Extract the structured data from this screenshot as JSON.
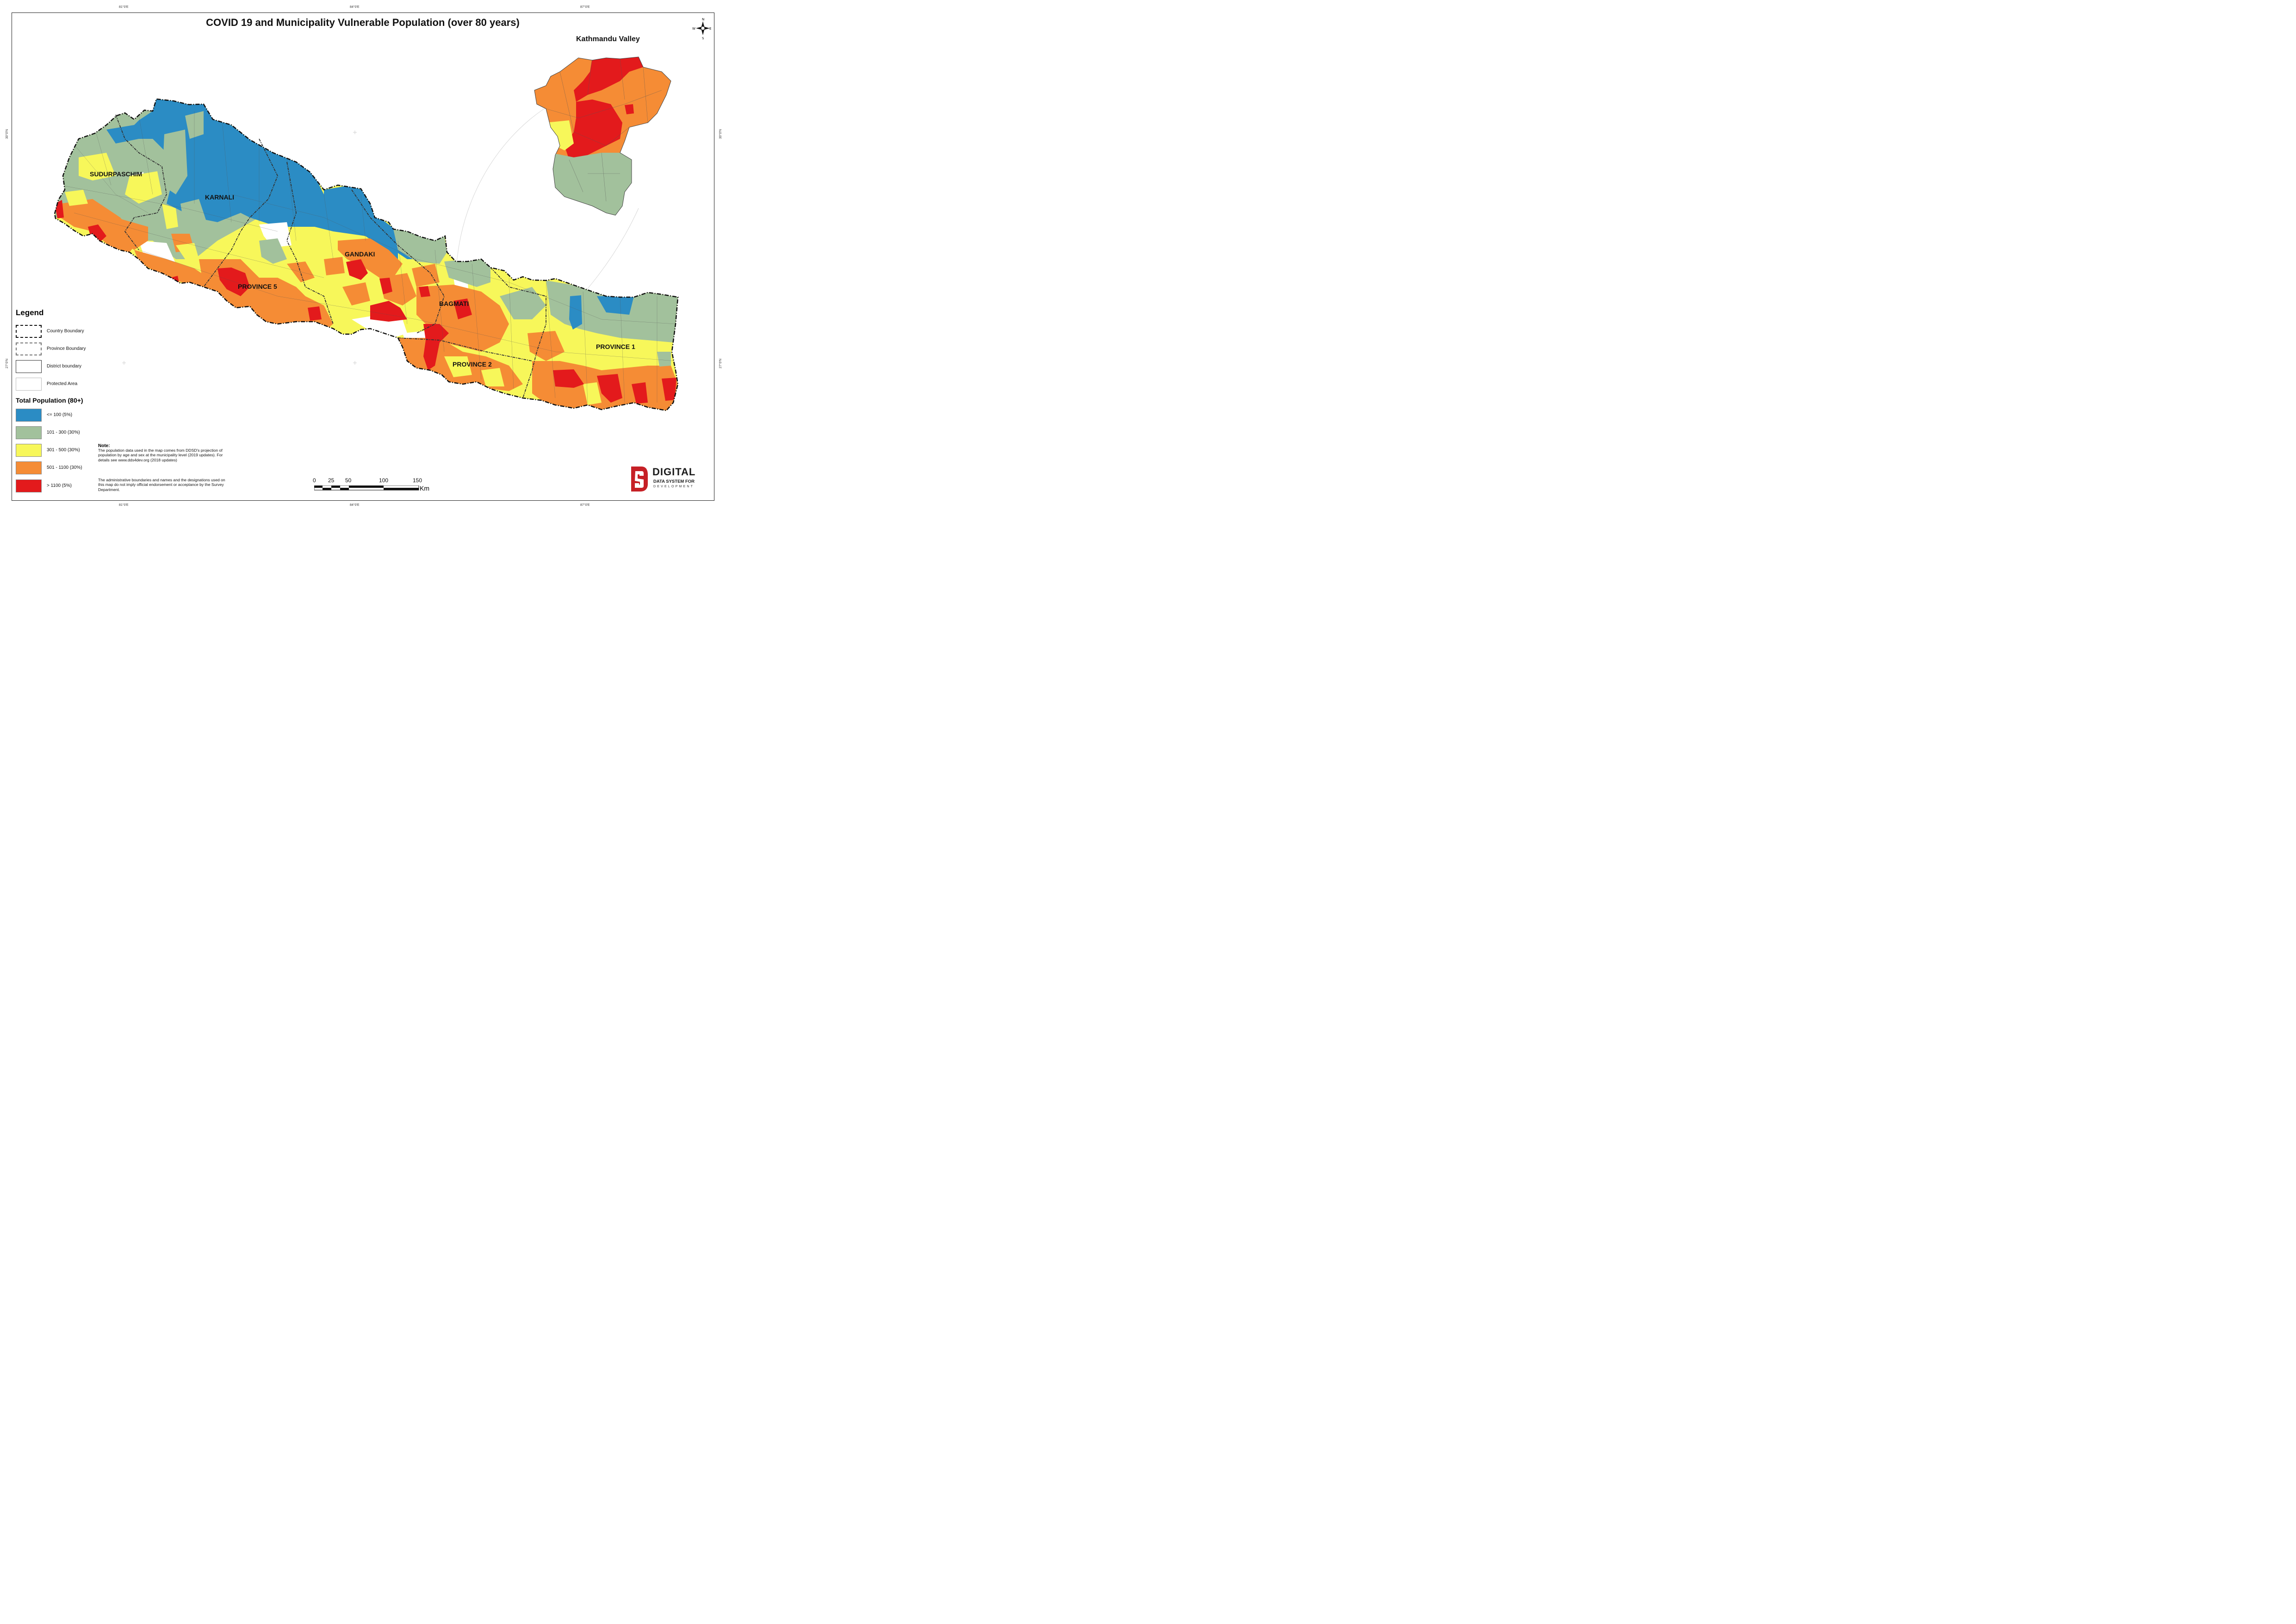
{
  "title": "COVID 19 and Municipality Vulnerable Population (over 80 years)",
  "inset_title": "Kathmandu Valley",
  "graticule": {
    "top": [
      "81°0'E",
      "84°0'E",
      "87°0'E"
    ],
    "bottom": [
      "81°0'E",
      "84°0'E",
      "87°0'E"
    ],
    "left": [
      "30°0'N",
      "27°0'N"
    ],
    "right": [
      "30°0'N",
      "27°0'N"
    ]
  },
  "north_arrow": {
    "n": "N",
    "s": "S",
    "e": "E",
    "w": "W"
  },
  "provinces": [
    {
      "id": "sudurpaschim",
      "label": "SUDURPASCHIM"
    },
    {
      "id": "karnali",
      "label": "KARNALI"
    },
    {
      "id": "gandaki",
      "label": "GANDAKI"
    },
    {
      "id": "province5",
      "label": "PROVINCE 5"
    },
    {
      "id": "bagmati",
      "label": "BAGMATI"
    },
    {
      "id": "province2",
      "label": "PROVINCE 2"
    },
    {
      "id": "province1",
      "label": "PROVINCE 1"
    }
  ],
  "legend": {
    "title": "Legend",
    "boundaries": [
      {
        "id": "country",
        "label": "Country Boundary"
      },
      {
        "id": "province",
        "label": "Province Boundary"
      },
      {
        "id": "district",
        "label": "District boundary"
      },
      {
        "id": "protected",
        "label": "Protected Area"
      }
    ],
    "classes_title": "Total Population (80+)",
    "classes": [
      {
        "label": "<= 100 (5%)",
        "color": "#2b8cc4"
      },
      {
        "label": "101 - 300 (30%)",
        "color": "#a2c19c"
      },
      {
        "label": "301 - 500 (30%)",
        "color": "#f7f75a"
      },
      {
        "label": "501 - 1100 (30%)",
        "color": "#f58c35"
      },
      {
        "label": "> 1100 (5%)",
        "color": "#e31a1c"
      }
    ]
  },
  "note": {
    "heading": "Note:",
    "text1": "The population data used in the map comes from DDSD's projection of population by age and sex at the municipality level (2019 updates). For details see www.dds4dev.org (2018 updates)",
    "text2": "The administrative boundaries and names and the designations used on this map do not imply official endorsement or acceptance by the Survey Department."
  },
  "scale_bar": {
    "ticks": [
      "0",
      "25",
      "50",
      "100",
      "150"
    ],
    "unit": "Km"
  },
  "logo": {
    "main": "DIGITAL",
    "sub": "DATA SYSTEM FOR",
    "sub2": "DEVELOPMENT"
  }
}
